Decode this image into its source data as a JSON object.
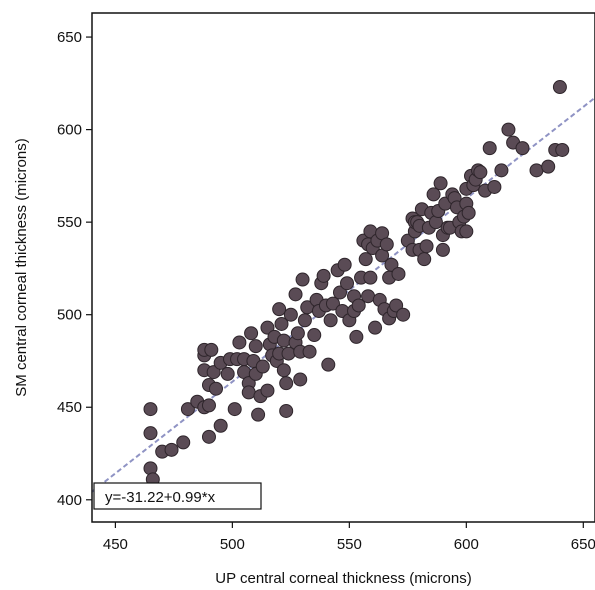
{
  "chart_data": {
    "type": "scatter",
    "title": "",
    "xlabel": "UP central corneal thickness (microns)",
    "ylabel": "SM central corneal thickness (microns)",
    "xlim": [
      440,
      655
    ],
    "ylim": [
      388,
      663
    ],
    "x_ticks": [
      450,
      500,
      550,
      600,
      650
    ],
    "y_ticks": [
      400,
      450,
      500,
      550,
      600,
      650
    ],
    "grid": false,
    "colors": {
      "point_fill": "#5a4b55",
      "point_stroke": "#2e252b",
      "fit_line": "#8f93c4",
      "frame": "#111111"
    },
    "fit_line": {
      "intercept": -31.22,
      "slope": 0.99,
      "label": "y=-31.22+0.99*x"
    },
    "points": [
      [
        465,
        449
      ],
      [
        465,
        436
      ],
      [
        465,
        417
      ],
      [
        466,
        411
      ],
      [
        470,
        426
      ],
      [
        474,
        427
      ],
      [
        479,
        431
      ],
      [
        481,
        449
      ],
      [
        485,
        453
      ],
      [
        488,
        450
      ],
      [
        488,
        470
      ],
      [
        488,
        478
      ],
      [
        488,
        481
      ],
      [
        490,
        434
      ],
      [
        490,
        451
      ],
      [
        490,
        462
      ],
      [
        491,
        481
      ],
      [
        492,
        469
      ],
      [
        493,
        460
      ],
      [
        495,
        440
      ],
      [
        495,
        474
      ],
      [
        498,
        468
      ],
      [
        499,
        476
      ],
      [
        501,
        449
      ],
      [
        502,
        476
      ],
      [
        503,
        485
      ],
      [
        505,
        476
      ],
      [
        505,
        469
      ],
      [
        507,
        463
      ],
      [
        507,
        458
      ],
      [
        508,
        490
      ],
      [
        509,
        475
      ],
      [
        510,
        483
      ],
      [
        510,
        468
      ],
      [
        511,
        446
      ],
      [
        512,
        456
      ],
      [
        513,
        472
      ],
      [
        515,
        459
      ],
      [
        515,
        493
      ],
      [
        516,
        484
      ],
      [
        517,
        478
      ],
      [
        518,
        488
      ],
      [
        519,
        475
      ],
      [
        520,
        503
      ],
      [
        520,
        479
      ],
      [
        521,
        495
      ],
      [
        522,
        486
      ],
      [
        522,
        470
      ],
      [
        523,
        463
      ],
      [
        523,
        448
      ],
      [
        524,
        479
      ],
      [
        525,
        500
      ],
      [
        527,
        485
      ],
      [
        527,
        511
      ],
      [
        528,
        490
      ],
      [
        529,
        480
      ],
      [
        529,
        465
      ],
      [
        530,
        519
      ],
      [
        531,
        497
      ],
      [
        532,
        504
      ],
      [
        533,
        480
      ],
      [
        535,
        489
      ],
      [
        536,
        508
      ],
      [
        537,
        502
      ],
      [
        538,
        517
      ],
      [
        539,
        521
      ],
      [
        540,
        505
      ],
      [
        541,
        473
      ],
      [
        542,
        497
      ],
      [
        543,
        506
      ],
      [
        545,
        524
      ],
      [
        546,
        512
      ],
      [
        547,
        502
      ],
      [
        548,
        527
      ],
      [
        549,
        517
      ],
      [
        550,
        497
      ],
      [
        552,
        510
      ],
      [
        552,
        502
      ],
      [
        553,
        488
      ],
      [
        554,
        505
      ],
      [
        555,
        520
      ],
      [
        556,
        540
      ],
      [
        557,
        530
      ],
      [
        558,
        538
      ],
      [
        558,
        510
      ],
      [
        559,
        520
      ],
      [
        559,
        545
      ],
      [
        560,
        536
      ],
      [
        561,
        493
      ],
      [
        562,
        540
      ],
      [
        563,
        508
      ],
      [
        564,
        544
      ],
      [
        564,
        532
      ],
      [
        565,
        503
      ],
      [
        566,
        538
      ],
      [
        567,
        520
      ],
      [
        567,
        498
      ],
      [
        568,
        527
      ],
      [
        569,
        502
      ],
      [
        570,
        505
      ],
      [
        571,
        522
      ],
      [
        573,
        500
      ],
      [
        575,
        540
      ],
      [
        577,
        535
      ],
      [
        577,
        552
      ],
      [
        578,
        545
      ],
      [
        578,
        550
      ],
      [
        579,
        550
      ],
      [
        580,
        535
      ],
      [
        580,
        548
      ],
      [
        581,
        557
      ],
      [
        582,
        530
      ],
      [
        583,
        537
      ],
      [
        584,
        547
      ],
      [
        585,
        555
      ],
      [
        586,
        565
      ],
      [
        587,
        550
      ],
      [
        588,
        556
      ],
      [
        589,
        571
      ],
      [
        590,
        543
      ],
      [
        590,
        535
      ],
      [
        591,
        560
      ],
      [
        592,
        547
      ],
      [
        593,
        547
      ],
      [
        594,
        565
      ],
      [
        595,
        563
      ],
      [
        596,
        558
      ],
      [
        597,
        550
      ],
      [
        598,
        545
      ],
      [
        599,
        553
      ],
      [
        600,
        560
      ],
      [
        600,
        568
      ],
      [
        600,
        545
      ],
      [
        601,
        555
      ],
      [
        602,
        575
      ],
      [
        603,
        570
      ],
      [
        604,
        573
      ],
      [
        605,
        578
      ],
      [
        606,
        577
      ],
      [
        608,
        567
      ],
      [
        610,
        590
      ],
      [
        612,
        569
      ],
      [
        615,
        578
      ],
      [
        618,
        600
      ],
      [
        620,
        593
      ],
      [
        624,
        590
      ],
      [
        630,
        578
      ],
      [
        635,
        580
      ],
      [
        638,
        589
      ],
      [
        640,
        623
      ],
      [
        641,
        589
      ]
    ]
  }
}
